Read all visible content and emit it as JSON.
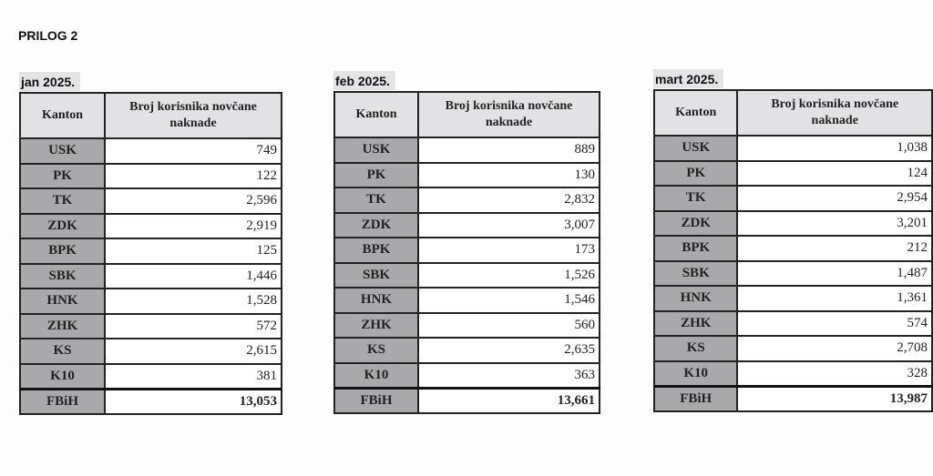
{
  "heading": "PRILOG 2",
  "column_headers": {
    "kanton": "Kanton",
    "value": "Broj korisnika novčane naknade"
  },
  "tables": [
    {
      "month": "jan 2025.",
      "rows": [
        [
          "USK",
          "749"
        ],
        [
          "PK",
          "122"
        ],
        [
          "TK",
          "2,596"
        ],
        [
          "ZDK",
          "2,919"
        ],
        [
          "BPK",
          "125"
        ],
        [
          "SBK",
          "1,446"
        ],
        [
          "HNK",
          "1,528"
        ],
        [
          "ZHK",
          "572"
        ],
        [
          "KS",
          "2,615"
        ],
        [
          "K10",
          "381"
        ]
      ],
      "total": [
        "FBiH",
        "13,053"
      ]
    },
    {
      "month": "feb 2025.",
      "rows": [
        [
          "USK",
          "889"
        ],
        [
          "PK",
          "130"
        ],
        [
          "TK",
          "2,832"
        ],
        [
          "ZDK",
          "3,007"
        ],
        [
          "BPK",
          "173"
        ],
        [
          "SBK",
          "1,526"
        ],
        [
          "HNK",
          "1,546"
        ],
        [
          "ZHK",
          "560"
        ],
        [
          "KS",
          "2,635"
        ],
        [
          "K10",
          "363"
        ]
      ],
      "total": [
        "FBiH",
        "13,661"
      ]
    },
    {
      "month": "mart 2025.",
      "rows": [
        [
          "USK",
          "1,038"
        ],
        [
          "PK",
          "124"
        ],
        [
          "TK",
          "2,954"
        ],
        [
          "ZDK",
          "3,201"
        ],
        [
          "BPK",
          "212"
        ],
        [
          "SBK",
          "1,487"
        ],
        [
          "HNK",
          "1,361"
        ],
        [
          "ZHK",
          "574"
        ],
        [
          "KS",
          "2,708"
        ],
        [
          "K10",
          "328"
        ]
      ],
      "total": [
        "FBiH",
        "13,987"
      ]
    }
  ]
}
